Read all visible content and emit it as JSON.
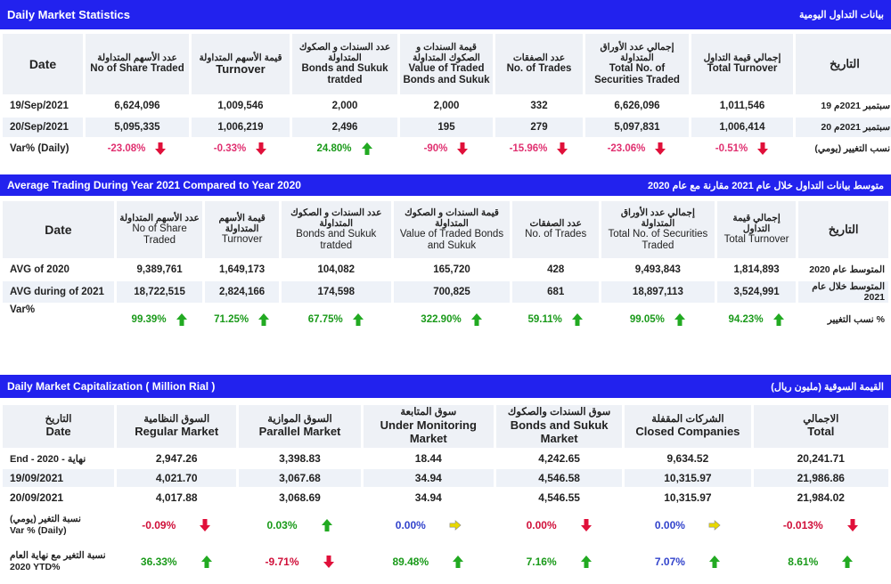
{
  "daily": {
    "title_en": "Daily Market Statistics",
    "title_ar": "بيانات التداول اليومية",
    "headers": [
      {
        "en": "Date",
        "ar": ""
      },
      {
        "ar": "عدد الأسهم المتداولة",
        "en": "No of Share Traded"
      },
      {
        "ar": "قيمة الأسهم المتداولة",
        "en": "Turnover"
      },
      {
        "ar": "عدد السندات و الصكوك المتداولة",
        "en": "Bonds and Sukuk tratded"
      },
      {
        "ar": "قيمة السندات و الصكوك المتداولة",
        "en": "Value of Traded Bonds and Sukuk"
      },
      {
        "ar": "عدد الصفقات",
        "en": "No. of Trades"
      },
      {
        "ar": "إجمالي عدد الأوراق المتداولة",
        "en": "Total No. of Securities Traded"
      },
      {
        "ar": "إجمالي قيمة التداول",
        "en": "Total Turnover"
      },
      {
        "ar": "التاريخ",
        "en": ""
      }
    ],
    "rows": [
      {
        "date": "19/Sep/2021",
        "values": [
          "6,624,096",
          "1,009,546",
          "2,000",
          "2,000",
          "332",
          "6,626,096",
          "1,011,546"
        ],
        "ar": "19 سبتمبر 2021م"
      },
      {
        "date": "20/Sep/2021",
        "values": [
          "5,095,335",
          "1,006,219",
          "2,496",
          "195",
          "279",
          "5,097,831",
          "1,006,414"
        ],
        "ar": "20 سبتمبر 2021م"
      }
    ],
    "var_label": "Var% (Daily)",
    "var_label_ar": "نسب التغيير (يومي)",
    "var": [
      {
        "v": "-23.08%",
        "dir": "down"
      },
      {
        "v": "-0.33%",
        "dir": "down"
      },
      {
        "v": "24.80%",
        "dir": "up"
      },
      {
        "v": "-90%",
        "dir": "down"
      },
      {
        "v": "-15.96%",
        "dir": "down"
      },
      {
        "v": "-23.06%",
        "dir": "down"
      },
      {
        "v": "-0.51%",
        "dir": "down"
      }
    ]
  },
  "average": {
    "title_en": "Average Trading During Year 2021 Compared to Year 2020",
    "title_ar": "متوسط بيانات التداول خلال عام 2021 مقارنة مع عام 2020",
    "headers": [
      {
        "en": "Date",
        "ar": ""
      },
      {
        "ar": "عدد الأسهم المتداولة",
        "en": "No of Share Traded"
      },
      {
        "ar": "قيمة الأسهم المتداولة",
        "en": "Turnover"
      },
      {
        "ar": "عدد السندات و الصكوك المتداولة",
        "en": "Bonds and Sukuk tratded"
      },
      {
        "ar": "قيمة السندات و الصكوك المتداولة",
        "en": "Value of Traded Bonds and Sukuk"
      },
      {
        "ar": "عدد الصفقات",
        "en": "No. of Trades"
      },
      {
        "ar": "إجمالي عدد الأوراق المتداولة",
        "en": "Total No. of Securities Traded"
      },
      {
        "ar": "إجمالي قيمة التداول",
        "en": "Total Turnover"
      },
      {
        "ar": "التاريخ",
        "en": ""
      }
    ],
    "rows": [
      {
        "date": "AVG of 2020",
        "values": [
          "9,389,761",
          "1,649,173",
          "104,082",
          "165,720",
          "428",
          "9,493,843",
          "1,814,893"
        ],
        "ar": "المتوسط عام 2020"
      },
      {
        "date": "AVG during of 2021",
        "values": [
          "18,722,515",
          "2,824,166",
          "174,598",
          "700,825",
          "681",
          "18,897,113",
          "3,524,991"
        ],
        "ar": "المتوسط خلال عام 2021"
      }
    ],
    "var_label": "Var%",
    "var_label_ar": "نسب التغيير %",
    "var": [
      {
        "v": "99.39%",
        "dir": "up"
      },
      {
        "v": "71.25%",
        "dir": "up"
      },
      {
        "v": "67.75%",
        "dir": "up"
      },
      {
        "v": "322.90%",
        "dir": "up"
      },
      {
        "v": "59.11%",
        "dir": "up"
      },
      {
        "v": "99.05%",
        "dir": "up"
      },
      {
        "v": "94.23%",
        "dir": "up"
      }
    ]
  },
  "capitalization": {
    "title_en": "Daily Market Capitalization ( Million Rial )",
    "title_ar": "القيمة السوقية (مليون ريال)",
    "headers": [
      {
        "ar": "التاريخ",
        "en": "Date"
      },
      {
        "ar": "السوق النظامية",
        "en": "Regular Market"
      },
      {
        "ar": "السوق الموازية",
        "en": "Parallel Market"
      },
      {
        "ar": "سوق المتابعة",
        "en": "Under Monitoring Market"
      },
      {
        "ar": "سوق السندات والصكوك",
        "en": "Bonds and Sukuk Market"
      },
      {
        "ar": "الشركات المقفلة",
        "en": "Closed Companies"
      },
      {
        "ar": "الاجمالي",
        "en": "Total"
      }
    ],
    "rows": [
      {
        "date_en": "End - 2020 -",
        "date_ar": "نهاية",
        "values": [
          "2,947.26",
          "3,398.83",
          "18.44",
          "4,242.65",
          "9,634.52",
          "20,241.71"
        ]
      },
      {
        "date_en": "19/09/2021",
        "date_ar": "",
        "values": [
          "4,021.70",
          "3,067.68",
          "34.94",
          "4,546.58",
          "10,315.97",
          "21,986.86"
        ]
      },
      {
        "date_en": "20/09/2021",
        "date_ar": "",
        "values": [
          "4,017.88",
          "3,068.69",
          "34.94",
          "4,546.55",
          "10,315.97",
          "21,984.02"
        ]
      }
    ],
    "var_daily": {
      "label_ar": "نسبة التغير (يومي)",
      "label_en": "Var % (Daily)",
      "values": [
        {
          "v": "-0.09%",
          "dir": "down"
        },
        {
          "v": "0.03%",
          "dir": "up"
        },
        {
          "v": "0.00%",
          "dir": "flat"
        },
        {
          "v": "0.00%",
          "dir": "down"
        },
        {
          "v": "0.00%",
          "dir": "flat"
        },
        {
          "v": "-0.013%",
          "dir": "down"
        }
      ]
    },
    "var_ytd": {
      "label_ar": "نسبة التغير مع نهاية العام",
      "label_en": "2020 YTD%",
      "values": [
        {
          "v": "36.33%",
          "dir": "up"
        },
        {
          "v": "-9.71%",
          "dir": "down"
        },
        {
          "v": "89.48%",
          "dir": "up"
        },
        {
          "v": "7.16%",
          "dir": "up"
        },
        {
          "v": "7.07%",
          "dir": "up"
        },
        {
          "v": "8.61%",
          "dir": "up"
        }
      ]
    }
  },
  "colors": {
    "bar": "#2222ee",
    "up": "#22aa22",
    "down": "#e0103a",
    "flat": "#e8d800"
  }
}
